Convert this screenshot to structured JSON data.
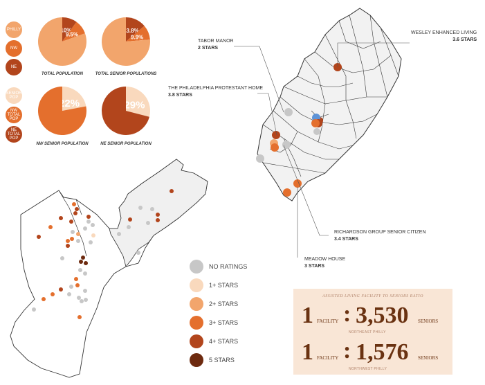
{
  "colors": {
    "no_ratings": "#c7c7c7",
    "star1": "#f9d9bd",
    "star2": "#f2a56c",
    "star3": "#e46f2d",
    "star4": "#b2451c",
    "star5": "#6d2a0f",
    "highlight": "#5e93d6",
    "map_fill": "#f2f2f2",
    "map_stroke": "#333333",
    "ratio_bg": "#f9e6d6"
  },
  "pie_legend": [
    {
      "label": "PHILLY",
      "color": "#f2a56c"
    },
    {
      "label": "NW",
      "color": "#e46f2d"
    },
    {
      "label": "NE",
      "color": "#b2451c"
    },
    {
      "label": "SENIOR POP",
      "color": "#f9d9bd"
    },
    {
      "label": "NW TOTAL POP",
      "color": "#e46f2d"
    },
    {
      "label": "NE TOTAL POP",
      "color": "#b2451c"
    }
  ],
  "pies": [
    {
      "caption": "TOTAL POPULATION",
      "slices": [
        {
          "label": "10%",
          "value": 10,
          "color": "#b2451c"
        },
        {
          "label": "9.5%",
          "value": 9.5,
          "color": "#e46f2d"
        },
        {
          "label": "",
          "value": 80.5,
          "color": "#f2a56c"
        }
      ]
    },
    {
      "caption": "TOTAL SENIOR POPULATIONS",
      "slices": [
        {
          "label": "13.8%",
          "value": 13.8,
          "color": "#b2451c"
        },
        {
          "label": "9.9%",
          "value": 9.9,
          "color": "#e46f2d"
        },
        {
          "label": "",
          "value": 76.3,
          "color": "#f2a56c"
        }
      ]
    },
    {
      "caption": "NW SENIOR POPULATION",
      "slices": [
        {
          "label": "22%",
          "value": 22,
          "color": "#f9d9bd"
        },
        {
          "label": "",
          "value": 78,
          "color": "#e46f2d"
        }
      ]
    },
    {
      "caption": "NE SENIOR POPULATION",
      "slices": [
        {
          "label": "29%",
          "value": 29,
          "color": "#f9d9bd"
        },
        {
          "label": "",
          "value": 71,
          "color": "#b2451c"
        }
      ]
    }
  ],
  "callouts": [
    {
      "name": "TABOR MANOR",
      "rating": "2 STARS"
    },
    {
      "name": "WESLEY ENHANCED LIVING",
      "rating": "3.6 STARS"
    },
    {
      "name": "THE PHILADELPHIA PROTESTANT HOME",
      "rating": "3.8 STARS"
    },
    {
      "name": "RICHARDSON GROUP SENIOR CITIZEN",
      "rating": "3.4 STARS"
    },
    {
      "name": "MEADOW HOUSE",
      "rating": "3 STARS"
    }
  ],
  "map_legend": [
    {
      "label": "NO RATINGS",
      "color": "#c7c7c7"
    },
    {
      "label": "1+ STARS",
      "color": "#f9d9bd"
    },
    {
      "label": "2+ STARS",
      "color": "#f2a56c"
    },
    {
      "label": "3+ STARS",
      "color": "#e46f2d"
    },
    {
      "label": "4+ STARS",
      "color": "#b2451c"
    },
    {
      "label": "5 STARS",
      "color": "#6d2a0f"
    }
  ],
  "ratio": {
    "title": "ASSISTED LIVING FACILITY TO SENIORS RATIO",
    "rows": [
      {
        "facility_count": "1",
        "facility_word": "FACILITY",
        "colon": ":",
        "seniors_count": "3,530",
        "seniors_word": "SENIORS",
        "region": "NORTHEAST PHILLY"
      },
      {
        "facility_count": "1",
        "facility_word": "FACILITY",
        "colon": ":",
        "seniors_count": "1,576",
        "seniors_word": "SENIORS",
        "region": "NORTHWEST PHILLY"
      }
    ]
  }
}
